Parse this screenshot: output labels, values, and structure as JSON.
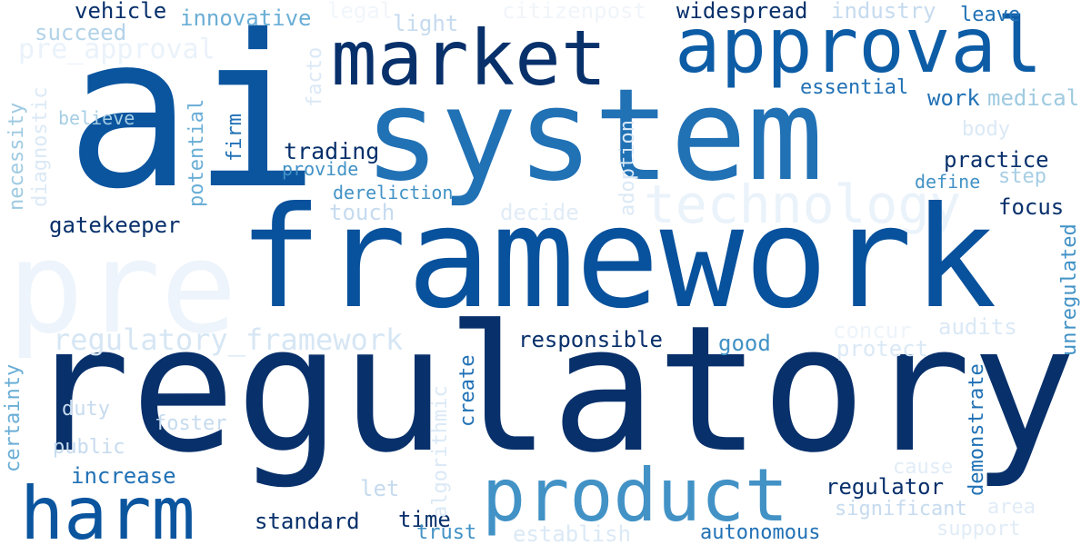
{
  "word_cloud": {
    "words": [
      {
        "text": "regulatory",
        "color": "#08306b"
      },
      {
        "text": "ai",
        "color": "#0b559f"
      },
      {
        "text": "framework",
        "color": "#08519c"
      },
      {
        "text": "system",
        "color": "#2171b5"
      },
      {
        "text": "market",
        "color": "#08306b"
      },
      {
        "text": "approval",
        "color": "#0d5ca6"
      },
      {
        "text": "product",
        "color": "#4292c6"
      },
      {
        "text": "harm",
        "color": "#0b559f"
      },
      {
        "text": "pre",
        "color": "#edf4fb"
      },
      {
        "text": "technology",
        "color": "#eaf2fa"
      },
      {
        "text": "regulatory_framework",
        "color": "#d6e6f4"
      },
      {
        "text": "trading",
        "color": "#08306b"
      },
      {
        "text": "practice",
        "color": "#08306b"
      },
      {
        "text": "responsible",
        "color": "#08306b"
      },
      {
        "text": "gatekeeper",
        "color": "#08306b"
      },
      {
        "text": "vehicle",
        "color": "#08306b"
      },
      {
        "text": "widespread",
        "color": "#08306b"
      },
      {
        "text": "focus",
        "color": "#08306b"
      },
      {
        "text": "standard",
        "color": "#08306b"
      },
      {
        "text": "time",
        "color": "#08306b"
      },
      {
        "text": "regulator",
        "color": "#08306b"
      },
      {
        "text": "innovative",
        "color": "#6aaed6"
      },
      {
        "text": "succeed",
        "color": "#b3d3e8"
      },
      {
        "text": "pre_approval",
        "color": "#eaf2fa"
      },
      {
        "text": "legal",
        "color": "#f1f6fb"
      },
      {
        "text": "light",
        "color": "#c6dbef"
      },
      {
        "text": "citizenpost",
        "color": "#f0f5fa"
      },
      {
        "text": "industry",
        "color": "#c6dbef"
      },
      {
        "text": "leave",
        "color": "#2171b5"
      },
      {
        "text": "essential",
        "color": "#2171b5"
      },
      {
        "text": "work",
        "color": "#2171b5"
      },
      {
        "text": "medical",
        "color": "#9ecae1"
      },
      {
        "text": "body",
        "color": "#dbe9f6"
      },
      {
        "text": "believe",
        "color": "#a6cee4"
      },
      {
        "text": "provide",
        "color": "#4292c6"
      },
      {
        "text": "dereliction",
        "color": "#4292c6"
      },
      {
        "text": "touch",
        "color": "#c6dbef"
      },
      {
        "text": "decide",
        "color": "#e1ecf7"
      },
      {
        "text": "define",
        "color": "#4292c6"
      },
      {
        "text": "step",
        "color": "#a6cee4"
      },
      {
        "text": "good",
        "color": "#4292c6"
      },
      {
        "text": "concur",
        "color": "#eef4fa"
      },
      {
        "text": "audits",
        "color": "#dbe9f6"
      },
      {
        "text": "protect",
        "color": "#dbe9f6"
      },
      {
        "text": "duty",
        "color": "#c6dbef"
      },
      {
        "text": "foster",
        "color": "#c6dbef"
      },
      {
        "text": "public",
        "color": "#c6dbef"
      },
      {
        "text": "increase",
        "color": "#2171b5"
      },
      {
        "text": "let",
        "color": "#c6dbef"
      },
      {
        "text": "cause",
        "color": "#e1ecf7"
      },
      {
        "text": "significant",
        "color": "#c6dbef"
      },
      {
        "text": "area",
        "color": "#e1ecf7"
      },
      {
        "text": "support",
        "color": "#e1ecf7"
      },
      {
        "text": "trust",
        "color": "#4292c6"
      },
      {
        "text": "establish",
        "color": "#dbe9f6"
      },
      {
        "text": "autonomous",
        "color": "#2171b5"
      },
      {
        "text": "necessity",
        "color": "#9ecae1"
      },
      {
        "text": "diagnostic",
        "color": "#dbe9f6"
      },
      {
        "text": "potential",
        "color": "#6aaed6"
      },
      {
        "text": "firm",
        "color": "#2171b5"
      },
      {
        "text": "facto",
        "color": "#dbe9f6"
      },
      {
        "text": "adoption",
        "color": "#dbe9f6"
      },
      {
        "text": "create",
        "color": "#2171b5"
      },
      {
        "text": "algorithmic",
        "color": "#dbe9f6"
      },
      {
        "text": "demonstrate",
        "color": "#2171b5"
      },
      {
        "text": "unregulated",
        "color": "#4292c6"
      },
      {
        "text": "certainty",
        "color": "#6aaed6"
      }
    ]
  }
}
